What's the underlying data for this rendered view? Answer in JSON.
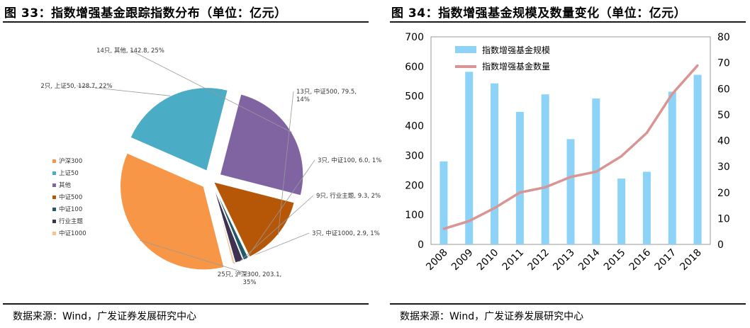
{
  "left": {
    "title": "图 33：指数增强基金跟踪指数分布（单位：亿元）",
    "source": "数据来源：Wind，广发证券发展研究中心"
  },
  "right": {
    "title": "图 34：指数增强基金规模及数量变化（单位：亿元）",
    "source": "数据来源：Wind，广发证券发展研究中心"
  },
  "chart_data": [
    {
      "type": "pie",
      "title": "",
      "legend_position": "left",
      "slices": [
        {
          "name": "沪深300",
          "count_label": "25只",
          "value": 203.1,
          "percent": "35%",
          "label": "25只, 沪深300, 203.1, 35%",
          "color": "#F79646",
          "exploded": true
        },
        {
          "name": "上证50",
          "count_label": "2只",
          "value": 128.7,
          "percent": "22%",
          "label": "2只, 上证50, 128.7, 22%",
          "color": "#4BACC6",
          "exploded": true
        },
        {
          "name": "其他",
          "count_label": "14只",
          "value": 142.8,
          "percent": "25%",
          "label": "14只, 其他, 142.8, 25%",
          "color": "#8064A2",
          "exploded": true
        },
        {
          "name": "中证500",
          "count_label": "13只",
          "value": 79.5,
          "percent": "14%",
          "label": "13只, 中证500, 79.5, 14%",
          "color": "#B65708",
          "exploded": false
        },
        {
          "name": "中证100",
          "count_label": "3只",
          "value": 6.0,
          "percent": "1%",
          "label": "3只, 中证100, 6.0, 1%",
          "color": "#215968",
          "exploded": false
        },
        {
          "name": "行业主题",
          "count_label": "9只",
          "value": 9.3,
          "percent": "2%",
          "label": "9只, 行业主题, 9.3, 2%",
          "color": "#3F3151",
          "exploded": false
        },
        {
          "name": "中证1000",
          "count_label": "3只",
          "value": 2.9,
          "percent": "1%",
          "label": "3只, 中证1000, 2.9, 1%",
          "color": "#FAC090",
          "exploded": false
        }
      ],
      "legend": [
        "沪深300",
        "上证50",
        "其他",
        "中证500",
        "中证100",
        "行业主题",
        "中证1000"
      ]
    },
    {
      "type": "bar+line",
      "title": "",
      "categories": [
        "2008",
        "2009",
        "2010",
        "2011",
        "2012",
        "2013",
        "2014",
        "2015",
        "2016",
        "2017",
        "2018"
      ],
      "series": [
        {
          "name": "指数增强基金规模",
          "type": "bar",
          "axis": "left",
          "color": "#8DD3F8",
          "values": [
            280,
            582,
            543,
            447,
            506,
            355,
            492,
            222,
            245,
            515,
            572
          ]
        },
        {
          "name": "指数增强基金数量",
          "type": "line",
          "axis": "right",
          "color": "#D99594",
          "values": [
            6,
            9,
            14,
            20,
            22,
            26,
            28,
            34,
            43,
            58,
            69
          ]
        }
      ],
      "y_left": {
        "min": 0,
        "max": 700,
        "ticks": [
          0,
          100,
          200,
          300,
          400,
          500,
          600,
          700
        ]
      },
      "y_right": {
        "min": 0,
        "max": 80,
        "ticks": [
          0,
          10,
          20,
          30,
          40,
          50,
          60,
          70,
          80
        ]
      },
      "legend_position": "top-left",
      "grid": false
    }
  ]
}
